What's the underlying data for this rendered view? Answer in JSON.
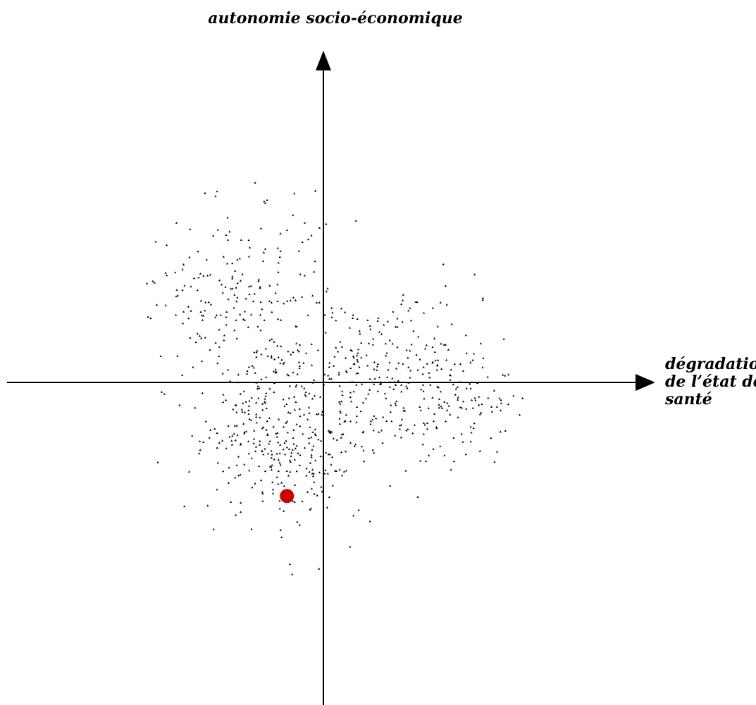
{
  "chart_data": {
    "type": "scatter",
    "title": "",
    "xlabel": "dégradation de l’état de santé",
    "ylabel": "autonomie socio-économique",
    "xlabel_lines": [
      "dégradation",
      "de l’état de",
      "santé"
    ],
    "xlim": [
      -1,
      1
    ],
    "ylim": [
      -1,
      1
    ],
    "grid": false,
    "legend": "none",
    "colors": {
      "points": "#000000",
      "highlight": "#cc0000",
      "axis": "#000000"
    },
    "highlight_point": {
      "x": -0.115,
      "y": -0.343
    },
    "cloud": {
      "n_points": 900,
      "seed": 7,
      "description_only_for_generation": "",
      "clusters": [
        {
          "weight": 0.28,
          "cx": -0.26,
          "cy": 0.23,
          "sx": 0.15,
          "sy": 0.16
        },
        {
          "weight": 0.22,
          "cx": 0.24,
          "cy": 0.07,
          "sx": 0.14,
          "sy": 0.1
        },
        {
          "weight": 0.12,
          "cx": 0.4,
          "cy": -0.08,
          "sx": 0.12,
          "sy": 0.08
        },
        {
          "weight": 0.38,
          "cx": -0.12,
          "cy": -0.17,
          "sx": 0.14,
          "sy": 0.13
        }
      ],
      "bounds": {
        "x": [
          -0.56,
          0.66
        ],
        "y": [
          -0.58,
          0.66
        ]
      }
    }
  }
}
